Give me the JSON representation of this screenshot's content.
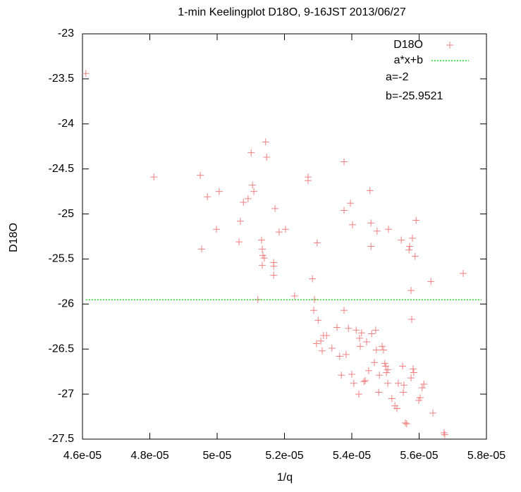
{
  "chart_data": {
    "type": "scatter",
    "title": "1-min Keelingplot D18O, 9-16JST 2013/06/27",
    "x_label": "1/q",
    "y_label": "D18O",
    "xlim": [
      4.6e-05,
      5.8e-05
    ],
    "ylim": [
      -27.5,
      -23
    ],
    "xticks": [
      {
        "value": 4.6e-05,
        "label": "4.6e-05"
      },
      {
        "value": 4.8e-05,
        "label": "4.8e-05"
      },
      {
        "value": 5e-05,
        "label": "5e-05"
      },
      {
        "value": 5.2e-05,
        "label": "5.2e-05"
      },
      {
        "value": 5.4e-05,
        "label": "5.4e-05"
      },
      {
        "value": 5.6e-05,
        "label": "5.6e-05"
      },
      {
        "value": 5.8e-05,
        "label": "5.8e-05"
      }
    ],
    "yticks": [
      -23,
      -23.5,
      -24,
      -24.5,
      -25,
      -25.5,
      -26,
      -26.5,
      -27,
      -27.5
    ],
    "legend": "top-right",
    "annotations": [
      "a=-2",
      "b=-25.9521"
    ],
    "series": [
      {
        "name": "D18O",
        "color": "#f08080",
        "mode": "markers",
        "x": [
          4.61e-05,
          4.812e-05,
          4.95e-05,
          4.954e-05,
          4.971e-05,
          4.998e-05,
          5.006e-05,
          5.065e-05,
          5.069e-05,
          5.078e-05,
          5.092e-05,
          5.101e-05,
          5.105e-05,
          5.109e-05,
          5.121e-05,
          5.132e-05,
          5.134e-05,
          5.136e-05,
          5.134e-05,
          5.14e-05,
          5.144e-05,
          5.147e-05,
          5.168e-05,
          5.168e-05,
          5.168e-05,
          5.172e-05,
          5.184e-05,
          5.203e-05,
          5.23e-05,
          5.27e-05,
          5.27e-05,
          5.283e-05,
          5.287e-05,
          5.289e-05,
          5.295e-05,
          5.297e-05,
          5.3e-05,
          5.308e-05,
          5.312e-05,
          5.316e-05,
          5.325e-05,
          5.341e-05,
          5.356e-05,
          5.364e-05,
          5.369e-05,
          5.377e-05,
          5.377e-05,
          5.377e-05,
          5.383e-05,
          5.39e-05,
          5.396e-05,
          5.4e-05,
          5.402e-05,
          5.406e-05,
          5.413e-05,
          5.421e-05,
          5.423e-05,
          5.425e-05,
          5.429e-05,
          5.436e-05,
          5.44e-05,
          5.444e-05,
          5.45e-05,
          5.454e-05,
          5.457e-05,
          5.457e-05,
          5.459e-05,
          5.467e-05,
          5.471e-05,
          5.473e-05,
          5.475e-05,
          5.482e-05,
          5.48e-05,
          5.49e-05,
          5.494e-05,
          5.498e-05,
          5.501e-05,
          5.503e-05,
          5.507e-05,
          5.507e-05,
          5.509e-05,
          5.519e-05,
          5.528e-05,
          5.534e-05,
          5.538e-05,
          5.547e-05,
          5.551e-05,
          5.553e-05,
          5.559e-05,
          5.563e-05,
          5.555e-05,
          5.57e-05,
          5.572e-05,
          5.576e-05,
          5.578e-05,
          5.576e-05,
          5.58e-05,
          5.582e-05,
          5.584e-05,
          5.588e-05,
          5.591e-05,
          5.599e-05,
          5.603e-05,
          5.609e-05,
          5.614e-05,
          5.635e-05,
          5.641e-05,
          5.674e-05,
          5.676e-05,
          5.731e-05
        ],
        "values": [
          -23.44,
          -24.59,
          -24.57,
          -25.39,
          -24.81,
          -25.17,
          -24.75,
          -25.31,
          -25.08,
          -24.87,
          -24.83,
          -24.32,
          -24.68,
          -24.75,
          -25.95,
          -25.29,
          -25.39,
          -25.46,
          -25.57,
          -25.49,
          -24.2,
          -24.37,
          -25.54,
          -25.58,
          -25.68,
          -24.94,
          -25.2,
          -25.17,
          -25.91,
          -24.59,
          -24.63,
          -25.72,
          -26.07,
          -25.95,
          -26.44,
          -25.32,
          -26.18,
          -26.41,
          -26.52,
          -26.35,
          -26.35,
          -26.49,
          -26.26,
          -26.58,
          -26.79,
          -24.42,
          -24.96,
          -26.07,
          -26.56,
          -26.27,
          -24.88,
          -26.78,
          -25.12,
          -26.88,
          -26.29,
          -27.0,
          -26.38,
          -26.47,
          -26.32,
          -26.86,
          -26.85,
          -26.42,
          -26.74,
          -24.74,
          -25.1,
          -25.36,
          -26.33,
          -26.65,
          -26.29,
          -26.51,
          -25.19,
          -26.79,
          -26.98,
          -26.47,
          -26.51,
          -26.66,
          -26.69,
          -26.76,
          -26.73,
          -26.88,
          -25.17,
          -27.05,
          -27.13,
          -27.16,
          -26.88,
          -25.29,
          -26.69,
          -26.98,
          -27.32,
          -27.33,
          -26.9,
          -25.4,
          -25.36,
          -25.85,
          -26.17,
          -26.82,
          -25.27,
          -26.72,
          -26.76,
          -25.47,
          -25.07,
          -27.07,
          -27.04,
          -26.93,
          -26.89,
          -25.75,
          -27.21,
          -27.43,
          -27.45,
          -25.66
        ]
      },
      {
        "name": "a*x+b",
        "color": "#00cc00",
        "mode": "line",
        "x": [
          4.61e-05,
          5.785e-05
        ],
        "values": [
          -25.952192,
          -25.952216
        ]
      }
    ]
  }
}
